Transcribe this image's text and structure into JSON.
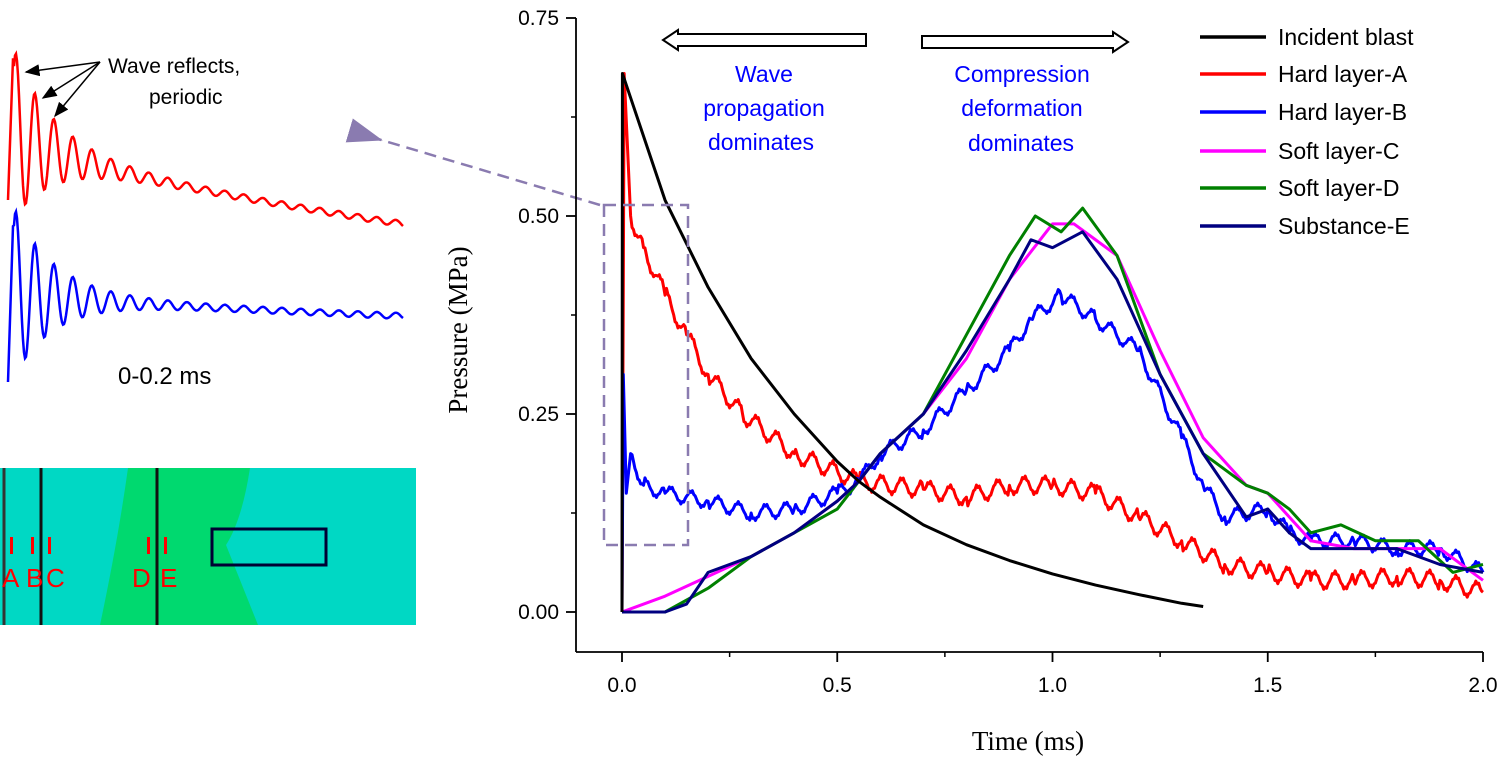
{
  "chart_data": {
    "type": "line",
    "xlabel": "Time (ms)",
    "ylabel": "Pressure (MPa)",
    "xlim": [
      -0.1,
      2.0
    ],
    "ylim": [
      -0.1,
      0.75
    ],
    "xticks": [
      0.0,
      0.5,
      1.0,
      1.5,
      2.0
    ],
    "xtick_labels": [
      "0.0",
      "0.5",
      "1.0",
      "1.5",
      "2.0"
    ],
    "yticks": [
      0.0,
      0.25,
      0.5,
      0.75
    ],
    "ytick_labels": [
      "0.00",
      "0.25",
      "0.50",
      "0.75"
    ],
    "grid": false,
    "legend_position": "top-right",
    "series": [
      {
        "name": "Incident blast",
        "color": "#000000",
        "x": [
          0,
          0.001,
          0.1,
          0.2,
          0.3,
          0.4,
          0.5,
          0.55,
          0.6,
          0.7,
          0.8,
          0.9,
          1.0,
          1.1,
          1.2,
          1.3,
          1.35
        ],
        "y": [
          0,
          0.68,
          0.52,
          0.41,
          0.32,
          0.25,
          0.19,
          0.165,
          0.145,
          0.11,
          0.085,
          0.065,
          0.048,
          0.034,
          0.022,
          0.011,
          0.007
        ]
      },
      {
        "name": "Hard layer-A",
        "color": "#ff0000",
        "x": [
          0,
          0.005,
          0.02,
          0.05,
          0.1,
          0.15,
          0.2,
          0.28,
          0.4,
          0.55,
          0.7,
          0.8,
          0.9,
          1.0,
          1.1,
          1.2,
          1.3,
          1.4,
          1.5,
          1.6,
          1.7,
          1.8,
          1.9,
          2.0
        ],
        "y": [
          0,
          0.68,
          0.5,
          0.46,
          0.4,
          0.35,
          0.3,
          0.25,
          0.2,
          0.165,
          0.155,
          0.145,
          0.16,
          0.16,
          0.15,
          0.12,
          0.09,
          0.06,
          0.05,
          0.04,
          0.04,
          0.045,
          0.04,
          0.025
        ]
      },
      {
        "name": "Hard layer-B",
        "color": "#0000ff",
        "x": [
          0,
          0.003,
          0.01,
          0.02,
          0.05,
          0.1,
          0.2,
          0.3,
          0.4,
          0.5,
          0.55,
          0.6,
          0.7,
          0.8,
          0.9,
          0.95,
          1.02,
          1.1,
          1.2,
          1.3,
          1.35,
          1.4,
          1.5,
          1.55,
          1.6,
          1.7,
          1.8,
          1.9,
          2.0
        ],
        "y": [
          0,
          0.3,
          0.15,
          0.2,
          0.16,
          0.15,
          0.14,
          0.125,
          0.13,
          0.15,
          0.165,
          0.2,
          0.23,
          0.28,
          0.33,
          0.37,
          0.4,
          0.37,
          0.33,
          0.22,
          0.16,
          0.12,
          0.13,
          0.1,
          0.09,
          0.09,
          0.08,
          0.08,
          0.05
        ]
      },
      {
        "name": "Soft layer-C",
        "color": "#ff00ff",
        "x": [
          0,
          0.1,
          0.2,
          0.3,
          0.4,
          0.5,
          0.55,
          0.6,
          0.7,
          0.8,
          0.9,
          1.0,
          1.05,
          1.1,
          1.15,
          1.25,
          1.35,
          1.45,
          1.5,
          1.55,
          1.6,
          1.7,
          1.8,
          1.9,
          2.0
        ],
        "y": [
          0,
          0.02,
          0.045,
          0.07,
          0.1,
          0.14,
          0.165,
          0.2,
          0.25,
          0.32,
          0.42,
          0.49,
          0.49,
          0.47,
          0.45,
          0.33,
          0.22,
          0.16,
          0.15,
          0.12,
          0.09,
          0.08,
          0.08,
          0.08,
          0.04
        ]
      },
      {
        "name": "Soft layer-D",
        "color": "#008000",
        "x": [
          0,
          0.1,
          0.2,
          0.3,
          0.4,
          0.5,
          0.55,
          0.6,
          0.7,
          0.8,
          0.9,
          0.96,
          1.02,
          1.07,
          1.15,
          1.25,
          1.35,
          1.45,
          1.5,
          1.55,
          1.6,
          1.67,
          1.75,
          1.85,
          1.93,
          2.0
        ],
        "y": [
          0,
          0,
          0.03,
          0.07,
          0.1,
          0.13,
          0.165,
          0.2,
          0.25,
          0.35,
          0.45,
          0.5,
          0.48,
          0.51,
          0.45,
          0.3,
          0.2,
          0.16,
          0.15,
          0.13,
          0.1,
          0.11,
          0.09,
          0.09,
          0.05,
          0.06
        ]
      },
      {
        "name": "Substance-E",
        "color": "#000080",
        "x": [
          0,
          0.1,
          0.15,
          0.2,
          0.3,
          0.4,
          0.5,
          0.55,
          0.6,
          0.7,
          0.8,
          0.9,
          0.95,
          1.0,
          1.07,
          1.15,
          1.25,
          1.35,
          1.45,
          1.5,
          1.55,
          1.6,
          1.7,
          1.8,
          1.9,
          2.0
        ],
        "y": [
          0,
          0,
          0.01,
          0.05,
          0.07,
          0.1,
          0.14,
          0.165,
          0.2,
          0.25,
          0.33,
          0.42,
          0.47,
          0.46,
          0.48,
          0.42,
          0.3,
          0.2,
          0.12,
          0.13,
          0.1,
          0.08,
          0.08,
          0.08,
          0.06,
          0.05
        ]
      }
    ],
    "annotations": {
      "left_region": "Wave propagation dominates",
      "right_region": "Compression deformation dominates",
      "left_lines": [
        "Wave",
        "propagation",
        "dominates"
      ],
      "right_lines": [
        "Compression",
        "deformation",
        "dominates"
      ],
      "annotation_color": "#0000ff"
    }
  },
  "inset": {
    "callout_lines": [
      "Wave reflects,",
      "periodic"
    ],
    "time_range": "0-0.2 ms",
    "series_colors": [
      "#ff0000",
      "#0000ff"
    ]
  },
  "model": {
    "labels": [
      "A",
      "B",
      "C",
      "D",
      "E"
    ],
    "background_color": "#00d8c4",
    "soft_layer_color": "#00d96f",
    "label_color": "#ff0000"
  }
}
